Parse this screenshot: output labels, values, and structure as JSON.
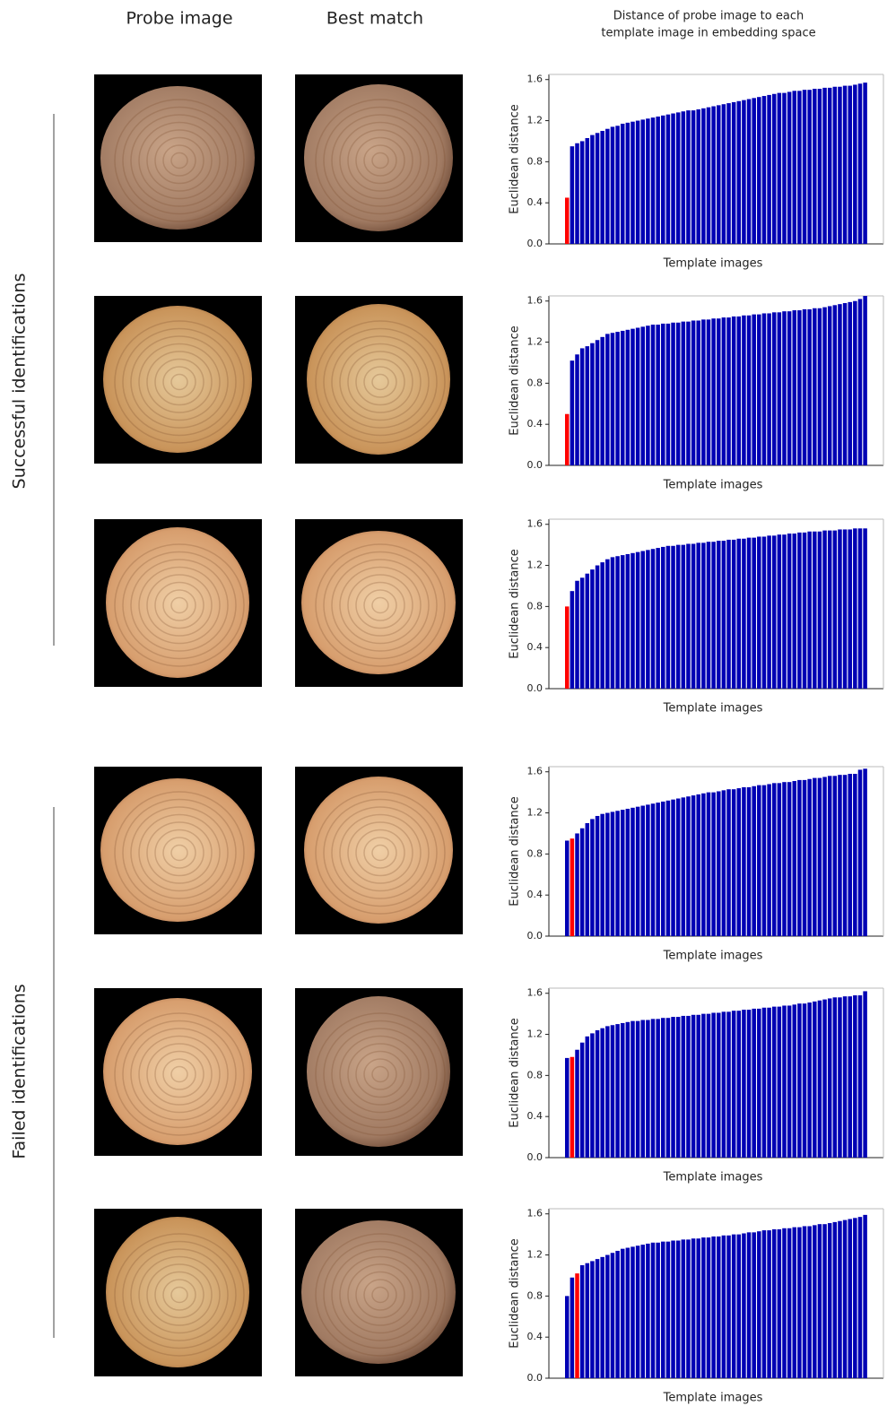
{
  "headers": {
    "probe": "Probe image",
    "match": "Best match",
    "chart_title": [
      "Distance of probe image to each",
      "template image in embedding space"
    ]
  },
  "groups": [
    "Successful identifications",
    "Failed identifications"
  ],
  "chart_data": [
    {
      "type": "bar",
      "y_label": "Euclidean distance",
      "x_label": "Template images",
      "color": "#0000b4",
      "highlight_index": 0,
      "highlight_color": "#ff0000",
      "ylim": [
        0,
        1.65
      ],
      "yticks": [
        {
          "value": 0,
          "label": "0.0"
        },
        0.4,
        0.8,
        1.2,
        1.6
      ],
      "values": [
        0.45,
        0.95,
        0.98,
        1.0,
        1.03,
        1.06,
        1.08,
        1.1,
        1.12,
        1.14,
        1.15,
        1.17,
        1.18,
        1.19,
        1.2,
        1.21,
        1.22,
        1.23,
        1.24,
        1.25,
        1.26,
        1.27,
        1.28,
        1.29,
        1.3,
        1.3,
        1.31,
        1.32,
        1.33,
        1.34,
        1.35,
        1.36,
        1.37,
        1.38,
        1.39,
        1.4,
        1.41,
        1.42,
        1.43,
        1.44,
        1.45,
        1.46,
        1.47,
        1.47,
        1.48,
        1.49,
        1.49,
        1.5,
        1.5,
        1.51,
        1.51,
        1.52,
        1.52,
        1.53,
        1.53,
        1.54,
        1.54,
        1.55,
        1.56,
        1.57
      ]
    },
    {
      "type": "bar",
      "y_label": "Euclidean distance",
      "x_label": "Template images",
      "color": "#0000b4",
      "highlight_index": 0,
      "highlight_color": "#ff0000",
      "ylim": [
        0,
        1.65
      ],
      "yticks": [
        {
          "value": 0,
          "label": "0.0"
        },
        0.4,
        0.8,
        1.2,
        1.6
      ],
      "values": [
        0.5,
        1.02,
        1.08,
        1.14,
        1.16,
        1.19,
        1.22,
        1.25,
        1.28,
        1.29,
        1.3,
        1.31,
        1.32,
        1.33,
        1.34,
        1.35,
        1.36,
        1.37,
        1.37,
        1.38,
        1.38,
        1.39,
        1.39,
        1.4,
        1.4,
        1.41,
        1.41,
        1.42,
        1.42,
        1.43,
        1.43,
        1.44,
        1.44,
        1.45,
        1.45,
        1.46,
        1.46,
        1.47,
        1.47,
        1.48,
        1.48,
        1.49,
        1.49,
        1.5,
        1.5,
        1.51,
        1.51,
        1.52,
        1.52,
        1.53,
        1.53,
        1.54,
        1.55,
        1.56,
        1.57,
        1.58,
        1.59,
        1.6,
        1.62,
        1.65
      ]
    },
    {
      "type": "bar",
      "y_label": "Euclidean distance",
      "x_label": "Template images",
      "color": "#0000b4",
      "highlight_index": 0,
      "highlight_color": "#ff0000",
      "ylim": [
        0,
        1.65
      ],
      "yticks": [
        {
          "value": 0,
          "label": "0.0"
        },
        0.4,
        0.8,
        1.2,
        1.6
      ],
      "values": [
        0.8,
        0.95,
        1.05,
        1.08,
        1.12,
        1.16,
        1.2,
        1.23,
        1.26,
        1.28,
        1.29,
        1.3,
        1.31,
        1.32,
        1.33,
        1.34,
        1.35,
        1.36,
        1.37,
        1.38,
        1.39,
        1.39,
        1.4,
        1.4,
        1.41,
        1.41,
        1.42,
        1.42,
        1.43,
        1.43,
        1.44,
        1.44,
        1.45,
        1.45,
        1.46,
        1.46,
        1.47,
        1.47,
        1.48,
        1.48,
        1.49,
        1.49,
        1.5,
        1.5,
        1.51,
        1.51,
        1.52,
        1.52,
        1.53,
        1.53,
        1.53,
        1.54,
        1.54,
        1.54,
        1.55,
        1.55,
        1.55,
        1.56,
        1.56,
        1.56
      ]
    },
    {
      "type": "bar",
      "y_label": "Euclidean distance",
      "x_label": "Template images",
      "color": "#0000b4",
      "highlight_index": 1,
      "highlight_color": "#ff0000",
      "ylim": [
        0,
        1.65
      ],
      "yticks": [
        {
          "value": 0,
          "label": "0.0"
        },
        0.4,
        0.8,
        1.2,
        1.6
      ],
      "values": [
        0.93,
        0.95,
        1.0,
        1.05,
        1.1,
        1.14,
        1.17,
        1.19,
        1.2,
        1.21,
        1.22,
        1.23,
        1.24,
        1.25,
        1.26,
        1.27,
        1.28,
        1.29,
        1.3,
        1.31,
        1.32,
        1.33,
        1.34,
        1.35,
        1.36,
        1.37,
        1.38,
        1.39,
        1.4,
        1.4,
        1.41,
        1.42,
        1.43,
        1.43,
        1.44,
        1.45,
        1.45,
        1.46,
        1.47,
        1.47,
        1.48,
        1.49,
        1.49,
        1.5,
        1.5,
        1.51,
        1.52,
        1.52,
        1.53,
        1.54,
        1.54,
        1.55,
        1.56,
        1.56,
        1.57,
        1.57,
        1.58,
        1.58,
        1.62,
        1.63
      ]
    },
    {
      "type": "bar",
      "y_label": "Euclidean distance",
      "x_label": "Template images",
      "color": "#0000b4",
      "highlight_index": 1,
      "highlight_color": "#ff0000",
      "ylim": [
        0,
        1.65
      ],
      "yticks": [
        {
          "value": 0,
          "label": "0.0"
        },
        0.4,
        0.8,
        1.2,
        1.6
      ],
      "values": [
        0.97,
        0.98,
        1.05,
        1.12,
        1.18,
        1.21,
        1.24,
        1.26,
        1.28,
        1.29,
        1.3,
        1.31,
        1.32,
        1.33,
        1.33,
        1.34,
        1.34,
        1.35,
        1.35,
        1.36,
        1.36,
        1.37,
        1.37,
        1.38,
        1.38,
        1.39,
        1.39,
        1.4,
        1.4,
        1.41,
        1.41,
        1.42,
        1.42,
        1.43,
        1.43,
        1.44,
        1.44,
        1.45,
        1.45,
        1.46,
        1.46,
        1.47,
        1.47,
        1.48,
        1.48,
        1.49,
        1.5,
        1.5,
        1.51,
        1.52,
        1.53,
        1.54,
        1.55,
        1.56,
        1.56,
        1.57,
        1.57,
        1.58,
        1.58,
        1.62
      ]
    },
    {
      "type": "bar",
      "y_label": "Euclidean distance",
      "x_label": "Template images",
      "color": "#0000b4",
      "highlight_index": 2,
      "highlight_color": "#ff0000",
      "ylim": [
        0,
        1.65
      ],
      "yticks": [
        {
          "value": 0,
          "label": "0.0"
        },
        0.4,
        0.8,
        1.2,
        1.6
      ],
      "values": [
        0.8,
        0.98,
        1.02,
        1.1,
        1.12,
        1.14,
        1.16,
        1.18,
        1.2,
        1.22,
        1.24,
        1.26,
        1.27,
        1.28,
        1.29,
        1.3,
        1.31,
        1.32,
        1.32,
        1.33,
        1.33,
        1.34,
        1.34,
        1.35,
        1.35,
        1.36,
        1.36,
        1.37,
        1.37,
        1.38,
        1.38,
        1.39,
        1.39,
        1.4,
        1.4,
        1.41,
        1.42,
        1.42,
        1.43,
        1.44,
        1.44,
        1.45,
        1.45,
        1.46,
        1.46,
        1.47,
        1.47,
        1.48,
        1.48,
        1.49,
        1.5,
        1.5,
        1.51,
        1.52,
        1.53,
        1.54,
        1.55,
        1.56,
        1.57,
        1.59
      ]
    }
  ]
}
